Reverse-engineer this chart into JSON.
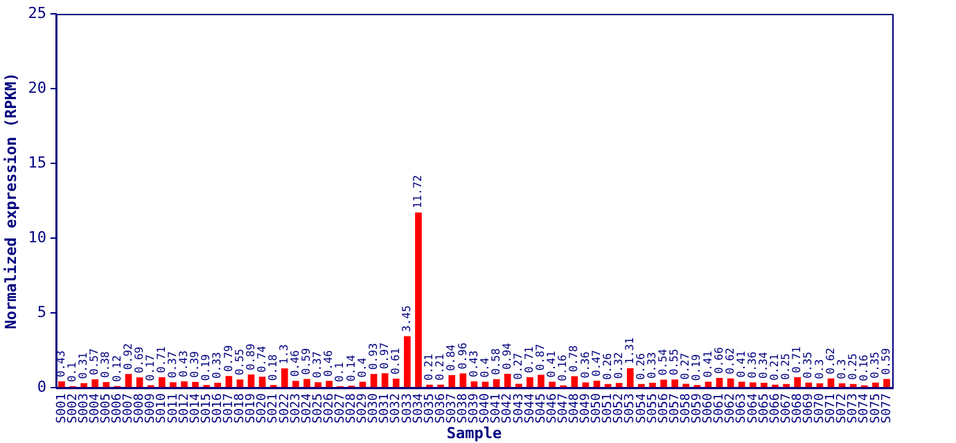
{
  "chart_data": {
    "type": "bar",
    "xlabel": "Sample",
    "ylabel": "Normalized expression (RPKM)",
    "categories": [
      "S001",
      "S002",
      "S003",
      "S004",
      "S005",
      "S006",
      "S007",
      "S008",
      "S009",
      "S010",
      "S011",
      "S012",
      "S014",
      "S015",
      "S016",
      "S017",
      "S018",
      "S019",
      "S020",
      "S021",
      "S022",
      "S023",
      "S024",
      "S025",
      "S026",
      "S027",
      "S028",
      "S029",
      "S030",
      "S031",
      "S032",
      "S033",
      "S034",
      "S035",
      "S036",
      "S037",
      "S038",
      "S039",
      "S040",
      "S041",
      "S042",
      "S043",
      "S044",
      "S045",
      "S046",
      "S047",
      "S048",
      "S049",
      "S050",
      "S051",
      "S052",
      "S053",
      "S054",
      "S055",
      "S056",
      "S057",
      "S058",
      "S059",
      "S060",
      "S061",
      "S062",
      "S063",
      "S064",
      "S065",
      "S066",
      "S067",
      "S068",
      "S069",
      "S070",
      "S071",
      "S072",
      "S073",
      "S074",
      "S075",
      "S077"
    ],
    "values": [
      0.43,
      0.1,
      0.31,
      0.57,
      0.38,
      0.12,
      0.92,
      0.69,
      0.17,
      0.71,
      0.37,
      0.43,
      0.39,
      0.19,
      0.33,
      0.79,
      0.55,
      0.89,
      0.74,
      0.18,
      1.3,
      0.46,
      0.59,
      0.37,
      0.46,
      0.1,
      0.14,
      0.4,
      0.93,
      0.97,
      0.61,
      3.45,
      11.72,
      0.21,
      0.21,
      0.84,
      0.96,
      0.43,
      0.4,
      0.58,
      0.94,
      0.27,
      0.71,
      0.87,
      0.41,
      0.16,
      0.78,
      0.36,
      0.47,
      0.26,
      0.32,
      1.31,
      0.26,
      0.33,
      0.54,
      0.55,
      0.27,
      0.19,
      0.41,
      0.66,
      0.62,
      0.41,
      0.36,
      0.34,
      0.21,
      0.25,
      0.71,
      0.35,
      0.3,
      0.62,
      0.3,
      0.25,
      0.16,
      0.35,
      0.59
    ],
    "color": "#ff0000",
    "ylim": [
      0,
      25
    ],
    "yticks": [
      0,
      5,
      10,
      15,
      20,
      25
    ],
    "data_labels": true,
    "grid": false,
    "legend": false
  }
}
